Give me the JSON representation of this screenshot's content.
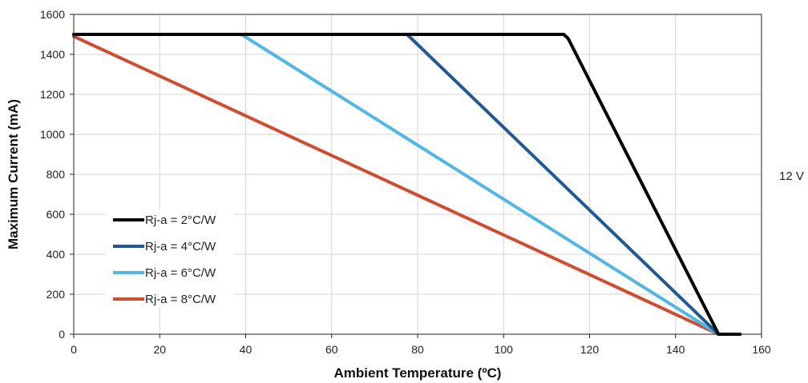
{
  "side_label": "12 V",
  "chart_data": {
    "type": "line",
    "title": "",
    "xlabel": "Ambient Temperature (ºC)",
    "ylabel": "Maximum Current (mA)",
    "xlim": [
      0,
      160
    ],
    "ylim": [
      0,
      1600
    ],
    "xticks": [
      0,
      20,
      40,
      60,
      80,
      100,
      120,
      140,
      160
    ],
    "yticks": [
      0,
      200,
      400,
      600,
      800,
      1000,
      1200,
      1400,
      1600
    ],
    "grid": true,
    "legend_position": "lower-left",
    "series": [
      {
        "name": "Rj-a = 2°C/W",
        "color": "#000000",
        "x": [
          0,
          114,
          115,
          150,
          155
        ],
        "y": [
          1500,
          1500,
          1480,
          0,
          0
        ]
      },
      {
        "name": "Rj-a = 4°C/W",
        "color": "#1f5a96",
        "x": [
          0,
          77.5,
          78.5,
          150,
          155
        ],
        "y": [
          1500,
          1500,
          1480,
          0,
          0
        ]
      },
      {
        "name": "Rj-a = 6°C/W",
        "color": "#4db8e8",
        "x": [
          0,
          39,
          150,
          155
        ],
        "y": [
          1500,
          1500,
          0,
          0
        ]
      },
      {
        "name": "Rj-a = 8°C/W",
        "color": "#d44a2a",
        "x": [
          0,
          150,
          155
        ],
        "y": [
          1490,
          0,
          0
        ]
      }
    ]
  }
}
